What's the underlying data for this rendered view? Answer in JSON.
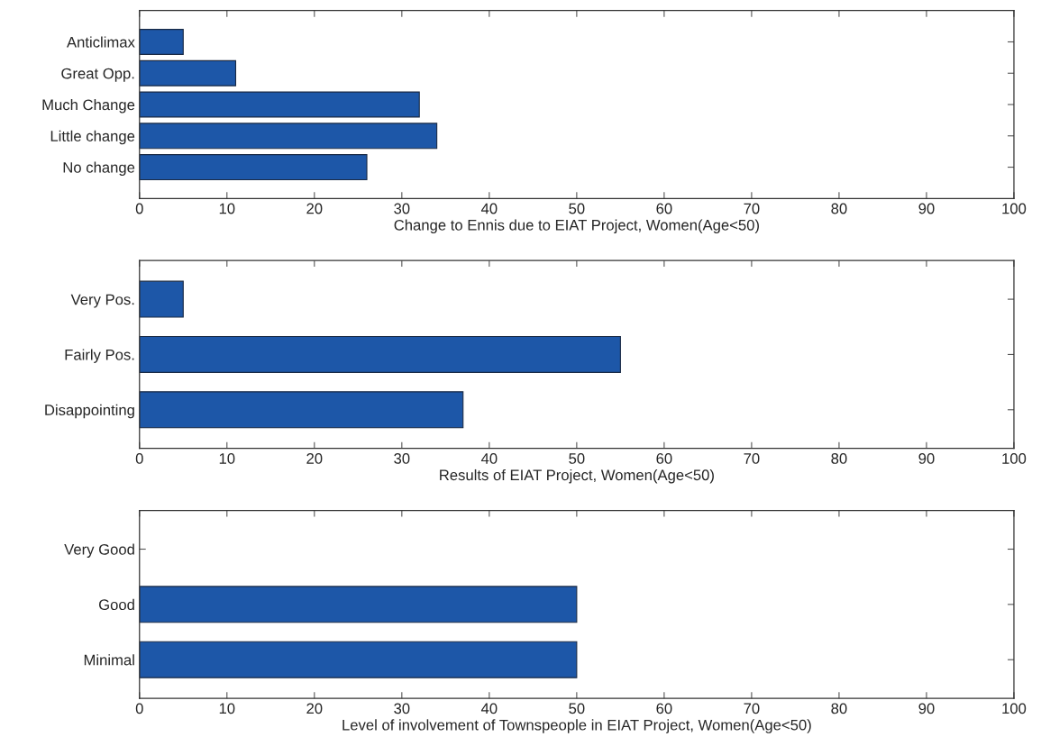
{
  "chart_data": [
    {
      "type": "bar",
      "orientation": "horizontal",
      "categories": [
        "Anticlimax",
        "Great Opp.",
        "Much Change",
        "Little change",
        "No change"
      ],
      "values": [
        5,
        11,
        32,
        34,
        26
      ],
      "color": "#1d57a8",
      "xlim": [
        0,
        100
      ],
      "xticks": [
        0,
        10,
        20,
        30,
        40,
        50,
        60,
        70,
        80,
        90,
        100
      ],
      "xlabel": "Change to Ennis due to EIAT Project, Women(Age<50)"
    },
    {
      "type": "bar",
      "orientation": "horizontal",
      "categories": [
        "Very Pos.",
        "Fairly Pos.",
        "Disappointing"
      ],
      "values": [
        5,
        55,
        37
      ],
      "color": "#1d57a8",
      "xlim": [
        0,
        100
      ],
      "xticks": [
        0,
        10,
        20,
        30,
        40,
        50,
        60,
        70,
        80,
        90,
        100
      ],
      "xlabel": "Results of EIAT Project, Women(Age<50)"
    },
    {
      "type": "bar",
      "orientation": "horizontal",
      "categories": [
        "Very Good",
        "Good",
        "Minimal"
      ],
      "values": [
        0,
        50,
        50
      ],
      "color": "#1d57a8",
      "xlim": [
        0,
        100
      ],
      "xticks": [
        0,
        10,
        20,
        30,
        40,
        50,
        60,
        70,
        80,
        90,
        100
      ],
      "xlabel": "Level of involvement of Townspeople in EIAT Project, Women(Age<50)"
    }
  ]
}
